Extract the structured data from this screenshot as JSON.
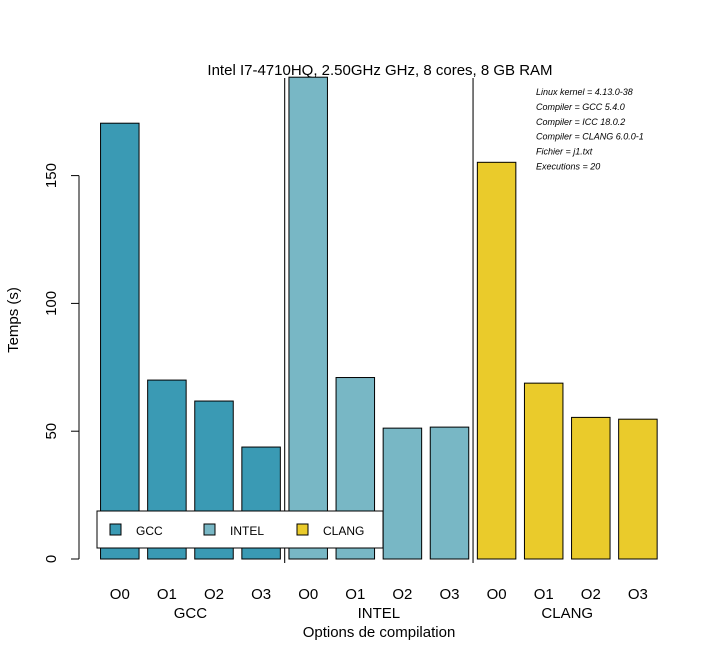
{
  "chart_data": {
    "type": "bar",
    "title": "Intel I7-4710HQ, 2.50GHz GHz, 8 cores, 8 GB RAM",
    "xlabel": "Options de compilation",
    "ylabel": "Temps (s)",
    "ylim": [
      0,
      190
    ],
    "yticks": [
      0,
      50,
      100,
      150
    ],
    "categories": [
      "O0",
      "O1",
      "O2",
      "O3"
    ],
    "groups": [
      {
        "name": "GCC",
        "color": "#3a9ab4",
        "values": [
          170.5,
          70.0,
          61.8,
          43.8
        ]
      },
      {
        "name": "INTEL",
        "color": "#78b7c5",
        "values": [
          188.5,
          71.0,
          51.2,
          51.6
        ]
      },
      {
        "name": "CLANG",
        "color": "#eacb2b",
        "values": [
          155.2,
          68.8,
          55.4,
          54.7
        ]
      }
    ],
    "annotations": [
      "Linux kernel = 4.13.0-38",
      "Compiler = GCC 5.4.0",
      "Compiler = ICC 18.0.2",
      "Compiler = CLANG 6.0.0-1",
      "Fichier = j1.txt",
      "Executions = 20"
    ],
    "legend": {
      "position": "bottom-left",
      "entries": [
        "GCC",
        "INTEL",
        "CLANG"
      ]
    },
    "grid": false
  }
}
